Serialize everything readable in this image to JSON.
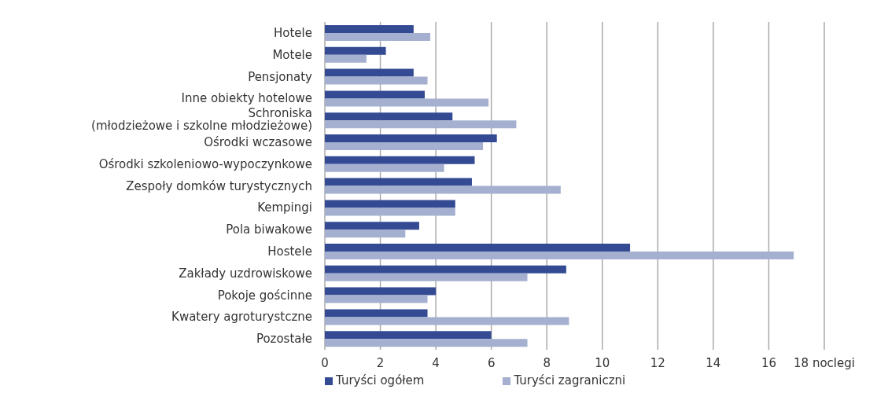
{
  "chart_data": {
    "type": "bar",
    "orientation": "horizontal",
    "categories": [
      "Hotele",
      "Motele",
      "Pensjonaty",
      "Inne obiekty hotelowe",
      "Schroniska\n(młodzieżowe i szkolne młodzieżowe)",
      "Ośrodki wczasowe",
      "Ośrodki szkoleniowo-wypoczynkowe",
      "Zespoły domków turystycznych",
      "Kempingi",
      "Pola biwakowe",
      "Hostele",
      "Zakłady uzdrowiskowe",
      "Pokoje gościnne",
      "Kwatery agroturystczne",
      "Pozostałe"
    ],
    "series": [
      {
        "name": "Turyści ogółem",
        "color": "#344b94",
        "values": [
          3.2,
          2.2,
          3.2,
          3.6,
          4.6,
          6.2,
          5.4,
          5.3,
          4.7,
          3.4,
          11.0,
          8.7,
          4.0,
          3.7,
          6.0
        ]
      },
      {
        "name": "Turyści zagraniczni",
        "color": "#a5b0d0",
        "values": [
          3.8,
          1.5,
          3.7,
          5.9,
          6.9,
          5.7,
          4.3,
          8.5,
          4.7,
          2.9,
          16.9,
          7.3,
          3.7,
          8.8,
          7.3
        ]
      }
    ],
    "xlim": [
      0,
      18
    ],
    "xticks": [
      0,
      2,
      4,
      6,
      8,
      10,
      12,
      14,
      16,
      {
        "value": 18,
        "label": "18 noclegi"
      }
    ],
    "grid": "x",
    "legend": "bottom left"
  }
}
